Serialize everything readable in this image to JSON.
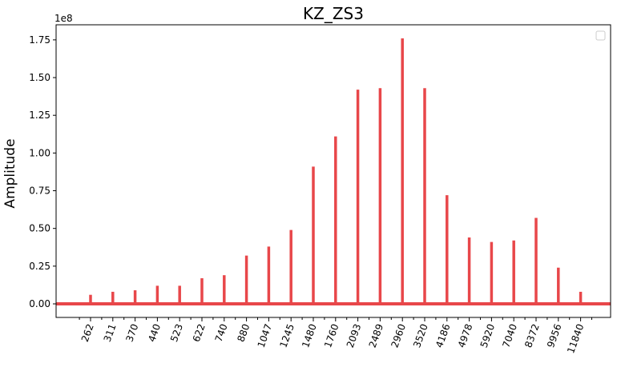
{
  "chart_data": {
    "type": "line",
    "title": "KZ_ZS3",
    "xlabel": "",
    "ylabel": "Amplitude",
    "y_offset_label": "1e8",
    "y_scale_factor": 100000000,
    "ylim": [
      -0.09,
      1.85
    ],
    "yticks": [
      0.0,
      0.25,
      0.5,
      0.75,
      1.0,
      1.25,
      1.5,
      1.75
    ],
    "ytick_labels": [
      "0.00",
      "0.25",
      "0.50",
      "0.75",
      "1.00",
      "1.25",
      "1.50",
      "1.75"
    ],
    "x_tick_labels": [
      "262",
      "311",
      "370",
      "440",
      "523",
      "622",
      "740",
      "880",
      "1047",
      "1245",
      "1480",
      "1760",
      "2093",
      "2489",
      "2960",
      "3520",
      "4186",
      "4978",
      "5920",
      "7040",
      "8372",
      "9956",
      "11840"
    ],
    "series": [
      {
        "color": "#e8474a",
        "frequencies": [
          262,
          311,
          370,
          440,
          523,
          622,
          740,
          880,
          1047,
          1245,
          1480,
          1760,
          2093,
          2489,
          2960,
          3520,
          4186,
          4978,
          5920,
          7040,
          8372,
          9956,
          11840
        ],
        "peak_values": [
          0.06,
          0.08,
          0.09,
          0.12,
          0.12,
          0.17,
          0.19,
          0.32,
          0.38,
          0.49,
          0.91,
          1.11,
          1.42,
          1.43,
          1.76,
          1.43,
          0.72,
          0.44,
          0.41,
          0.42,
          0.57,
          0.24,
          0.08
        ]
      }
    ],
    "legend": {
      "placement": "top-right",
      "entries": []
    },
    "grid": false
  }
}
